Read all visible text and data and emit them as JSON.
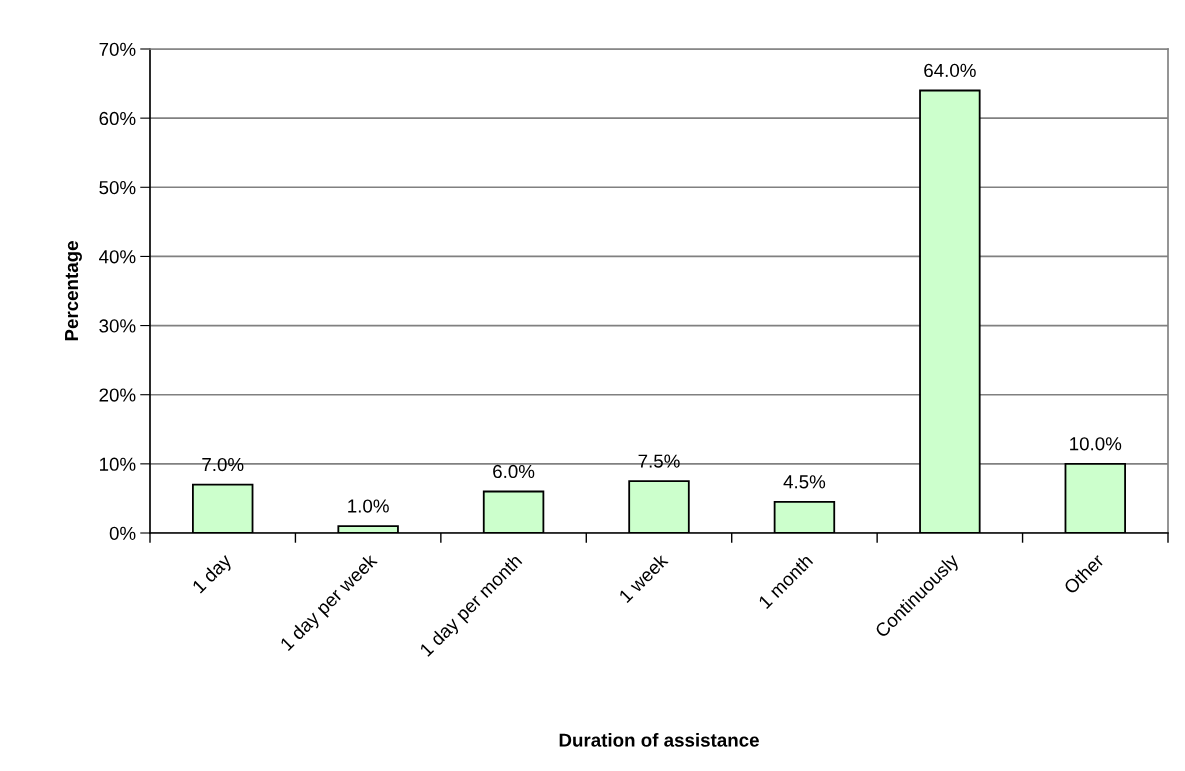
{
  "chart_data": {
    "type": "bar",
    "xlabel": "Duration of assistance",
    "ylabel": "Percentage",
    "categories": [
      "1 day",
      "1 day per week",
      "1 day per month",
      "1 week",
      "1 month",
      "Continuously",
      "Other"
    ],
    "values": [
      7.0,
      1.0,
      6.0,
      7.5,
      4.5,
      64.0,
      10.0
    ],
    "value_labels": [
      "7.0%",
      "1.0%",
      "6.0%",
      "7.5%",
      "4.5%",
      "64.0%",
      "10.0%"
    ],
    "color": "#ccffcc",
    "ylim": [
      0,
      70
    ],
    "yticks": [
      {
        "value": 0,
        "label": "0%"
      },
      {
        "value": 10,
        "label": "10%"
      },
      {
        "value": 20,
        "label": "20%"
      },
      {
        "value": 30,
        "label": "30%"
      },
      {
        "value": 40,
        "label": "40%"
      },
      {
        "value": 50,
        "label": "50%"
      },
      {
        "value": 60,
        "label": "60%"
      },
      {
        "value": 70,
        "label": "70%"
      }
    ],
    "grid": "y",
    "legend": false
  }
}
